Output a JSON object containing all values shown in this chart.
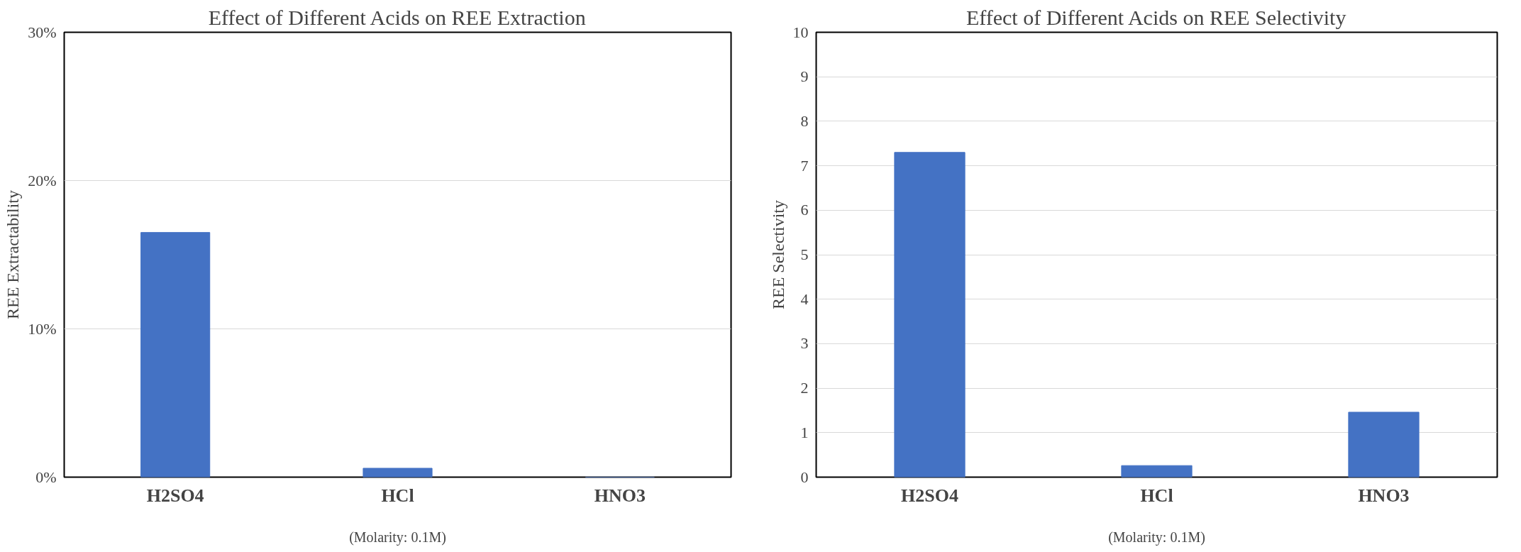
{
  "chart_data": [
    {
      "type": "bar",
      "title": "Effect of Different Acids on REE Extraction",
      "xlabel": "(Molarity: 0.1M)",
      "ylabel": "REE Extractability",
      "categories": [
        "H2SO4",
        "HCl",
        "HNO3"
      ],
      "values": [
        16.5,
        0.6,
        0
      ],
      "color": "#4472c4",
      "ylim": [
        0,
        30
      ],
      "yticks": [
        {
          "value": 0,
          "label": "0%"
        },
        {
          "value": 10,
          "label": "10%"
        },
        {
          "value": 20,
          "label": "20%"
        },
        {
          "value": 30,
          "label": "30%"
        }
      ],
      "grid": "y"
    },
    {
      "type": "bar",
      "title": "Effect of Different Acids on REE Selectivity",
      "xlabel": "(Molarity: 0.1M)",
      "ylabel": "REE Selectivity",
      "categories": [
        "H2SO4",
        "HCl",
        "HNO3"
      ],
      "values": [
        7.3,
        0.26,
        1.46
      ],
      "color": "#4472c4",
      "ylim": [
        0,
        10
      ],
      "yticks": [
        0,
        1,
        2,
        3,
        4,
        5,
        6,
        7,
        8,
        9,
        10
      ],
      "grid": "y"
    }
  ]
}
